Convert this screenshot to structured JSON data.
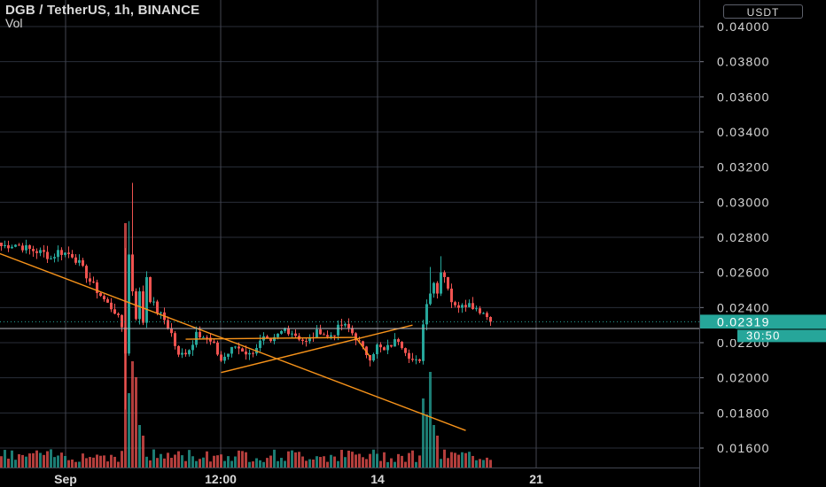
{
  "header": {
    "title": "DGB / TetherUS, 1h, BINANCE",
    "volume_label": "Vol",
    "currency_button": "USDT"
  },
  "colors": {
    "background": "#000000",
    "grid": "#2a2e39",
    "up": "#26a69a",
    "down": "#ef5350",
    "trendline": "#f7931a",
    "last_price_badge": "#26a69a",
    "axis_text": "#d9d9d9"
  },
  "price_axis": {
    "ticks": [
      "0.04000",
      "0.03800",
      "0.03600",
      "0.03400",
      "0.03200",
      "0.03000",
      "0.02800",
      "0.02600",
      "0.02400",
      "0.02200",
      "0.02000",
      "0.01800",
      "0.01600"
    ],
    "last_price": "0.02319",
    "countdown": "30:50"
  },
  "time_axis": {
    "labels": [
      "Sep",
      "12:00",
      "14",
      "21"
    ]
  },
  "chart_data": {
    "type": "candlestick",
    "symbol": "DGB / TetherUS",
    "interval": "1h",
    "exchange": "BINANCE",
    "ylim": [
      0.015,
      0.0412
    ],
    "last_price": 0.02319,
    "price_path": [
      [
        0,
        0.0275
      ],
      [
        4,
        0.0276
      ],
      [
        8,
        0.0273
      ],
      [
        12,
        0.0271
      ],
      [
        14,
        0.0268
      ],
      [
        16,
        0.0272
      ],
      [
        20,
        0.027
      ],
      [
        22,
        0.0265
      ],
      [
        25,
        0.0255
      ],
      [
        28,
        0.0247
      ],
      [
        30,
        0.0242
      ],
      [
        32,
        0.0238
      ],
      [
        34,
        0.0229
      ],
      [
        35,
        0.0215
      ],
      [
        36,
        0.027
      ],
      [
        37,
        0.025
      ],
      [
        38,
        0.0235
      ],
      [
        39,
        0.0248
      ],
      [
        40,
        0.0232
      ],
      [
        41,
        0.0258
      ],
      [
        42,
        0.0245
      ],
      [
        44,
        0.0238
      ],
      [
        46,
        0.0233
      ],
      [
        48,
        0.0225
      ],
      [
        50,
        0.0212
      ],
      [
        52,
        0.0215
      ],
      [
        54,
        0.0219
      ],
      [
        55,
        0.0228
      ],
      [
        56,
        0.0225
      ],
      [
        58,
        0.0222
      ],
      [
        60,
        0.0218
      ],
      [
        62,
        0.021
      ],
      [
        64,
        0.0214
      ],
      [
        66,
        0.0218
      ],
      [
        68,
        0.0216
      ],
      [
        70,
        0.0213
      ],
      [
        72,
        0.0218
      ],
      [
        74,
        0.0222
      ],
      [
        76,
        0.0219
      ],
      [
        78,
        0.0224
      ],
      [
        80,
        0.0228
      ],
      [
        82,
        0.0226
      ],
      [
        84,
        0.0223
      ],
      [
        86,
        0.022
      ],
      [
        88,
        0.0224
      ],
      [
        90,
        0.0227
      ],
      [
        92,
        0.0223
      ],
      [
        94,
        0.0226
      ],
      [
        96,
        0.023
      ],
      [
        98,
        0.0228
      ],
      [
        100,
        0.0223
      ],
      [
        102,
        0.0216
      ],
      [
        104,
        0.0212
      ],
      [
        106,
        0.0218
      ],
      [
        108,
        0.0215
      ],
      [
        110,
        0.0219
      ],
      [
        112,
        0.0222
      ],
      [
        114,
        0.0216
      ],
      [
        116,
        0.021
      ],
      [
        118,
        0.0208
      ],
      [
        119,
        0.0232
      ],
      [
        120,
        0.0242
      ],
      [
        121,
        0.025
      ],
      [
        122,
        0.0255
      ],
      [
        123,
        0.0248
      ],
      [
        124,
        0.0262
      ],
      [
        125,
        0.0258
      ],
      [
        126,
        0.0252
      ],
      [
        127,
        0.0244
      ],
      [
        128,
        0.024
      ],
      [
        130,
        0.0243
      ],
      [
        132,
        0.0242
      ],
      [
        134,
        0.024
      ],
      [
        136,
        0.0237
      ],
      [
        137,
        0.0235
      ],
      [
        138,
        0.0232
      ]
    ],
    "volume_spikes": [
      [
        35,
        0.92
      ],
      [
        36,
        0.28
      ],
      [
        37,
        0.4
      ],
      [
        38,
        0.34
      ],
      [
        39,
        0.16
      ],
      [
        40,
        0.12
      ],
      [
        119,
        0.26
      ],
      [
        120,
        0.2
      ],
      [
        121,
        0.36
      ],
      [
        122,
        0.16
      ],
      [
        123,
        0.12
      ]
    ],
    "trendlines": [
      {
        "from": [
          -36,
          0.0298
        ],
        "to": [
          131,
          0.017
        ],
        "kind": "descending resistance"
      },
      {
        "from": [
          52,
          0.0222
        ],
        "to": [
          100,
          0.0223
        ],
        "kind": "triangle top"
      },
      {
        "from": [
          62,
          0.0203
        ],
        "to": [
          116,
          0.023
        ],
        "kind": "ascending support"
      },
      {
        "from": [
          100,
          0.0223
        ],
        "to": [
          104,
          0.0212
        ],
        "kind": "breakdown leg"
      }
    ]
  }
}
